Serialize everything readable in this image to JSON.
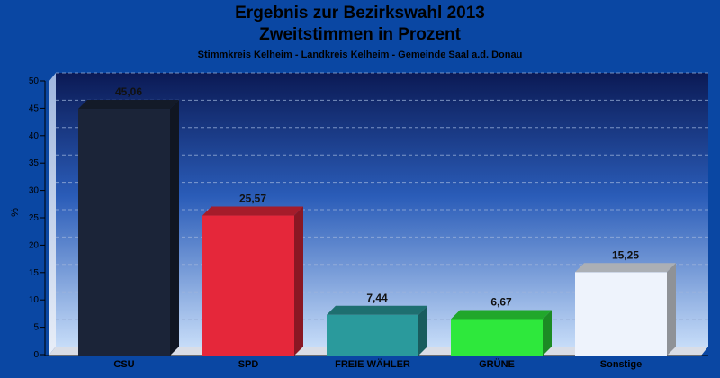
{
  "header": {
    "title_line1": "Ergebnis zur Bezirkswahl 2013",
    "title_line2": "Zweitstimmen in Prozent",
    "subtitle": "Stimmkreis Kelheim - Landkreis Kelheim - Gemeinde Saal a.d. Donau"
  },
  "chart_data": {
    "type": "bar",
    "title": "Ergebnis zur Bezirkswahl 2013 Zweitstimmen in Prozent",
    "subtitle": "Stimmkreis Kelheim - Landkreis Kelheim - Gemeinde Saal a.d. Donau",
    "xlabel": "",
    "ylabel": "%",
    "ylim": [
      0,
      50
    ],
    "yticks": [
      0,
      5,
      10,
      15,
      20,
      25,
      30,
      35,
      40,
      45,
      50
    ],
    "grid": true,
    "categories": [
      "CSU",
      "SPD",
      "FREIE WÄHLER",
      "GRÜNE",
      "Sonstige"
    ],
    "values": [
      45.06,
      25.57,
      7.44,
      6.67,
      15.25
    ],
    "value_labels": [
      "45,06",
      "25,57",
      "7,44",
      "6,67",
      "15,25"
    ],
    "colors": [
      "#1b2438",
      "#e5273a",
      "#2a9a9c",
      "#2ee83c",
      "#eef3fc"
    ]
  }
}
